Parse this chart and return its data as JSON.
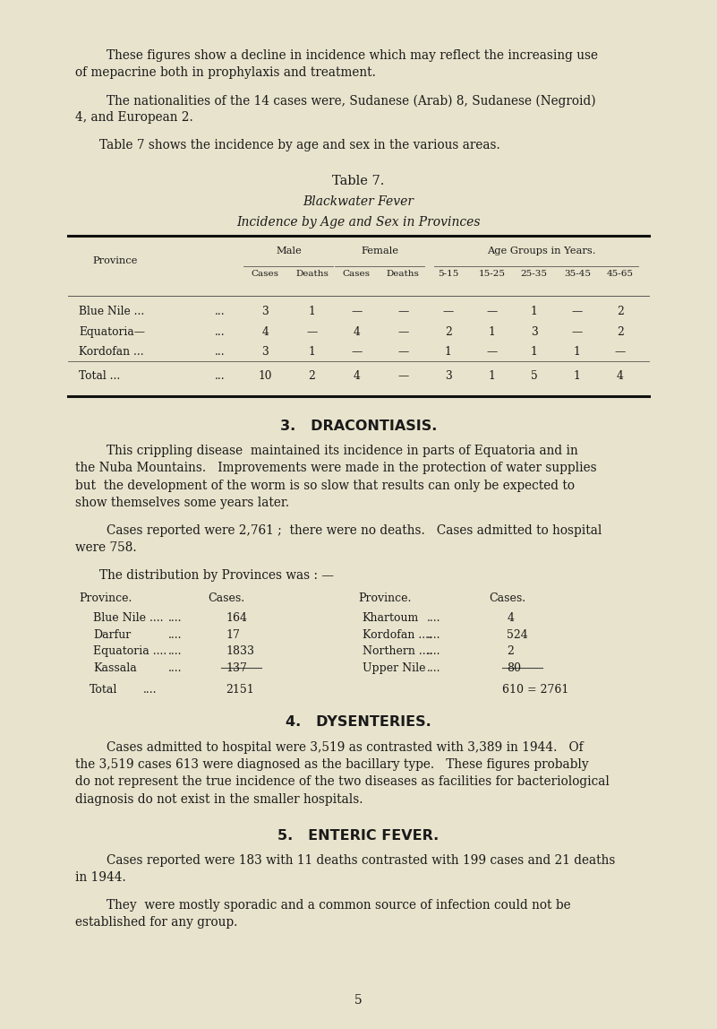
{
  "bg_color": "#e8e3cc",
  "text_color": "#1a1a1a",
  "page_width": 8.01,
  "page_height": 11.48,
  "dpi": 100,
  "para1": "These figures show a decline in incidence which may reflect the increasing use of mepacrine both in prophylaxis and treatment.",
  "para2": "The nationalities of the 14 cases were, Sudanese (Arab) 8, Sudanese (Negroid) 4, and European 2.",
  "para3": "Table 7 shows the incidence by age and sex in the various areas.",
  "table_title1": "Table 7.",
  "table_title2": "Blackwater Fever",
  "table_title3": "Incidence by Age and Sex in Provinces",
  "table_header1_col1": "Male",
  "table_header1_col2": "Female",
  "table_header1_col3": "Age Groups in Years.",
  "table_header2": [
    "Cases",
    "Deaths",
    "Cases",
    "Deaths",
    "5-15",
    "15-25",
    "25-35",
    "35-45",
    "45-65"
  ],
  "table_rows": [
    [
      "Blue Nile ...",
      "...",
      "3",
      "1",
      "—",
      "—",
      "—",
      "—",
      "1",
      "—",
      "2"
    ],
    [
      "Equatoria—",
      "...",
      "4",
      "—",
      "4",
      "—",
      "2",
      "1",
      "3",
      "—",
      "2"
    ],
    [
      "Kordofan ...",
      "...",
      "3",
      "1",
      "—",
      "—",
      "1",
      "—",
      "1",
      "1",
      "—"
    ]
  ],
  "table_total": [
    "Total ...",
    "...",
    "10",
    "2",
    "4",
    "—",
    "3",
    "1",
    "5",
    "1",
    "4"
  ],
  "section3_title": "3.   DRACONTIASIS.",
  "section3_p1": "This crippling disease  maintained its incidence in parts of Equatoria and in the Nuba Mountains.   Improvements were made in the protection of water supplies but  the development of the worm is so slow that results can only be expected to show themselves some years later.",
  "section3_p2": "Cases reported were 2,761 ;  there were no deaths.   Cases admitted to hospital were 758.",
  "section3_p3": "The distribution by Provinces was : —",
  "dist_left_header": [
    "Province.",
    "Cases."
  ],
  "dist_left": [
    [
      "Blue Nile ....",
      "....",
      "164"
    ],
    [
      "Darfur",
      "....",
      "17"
    ],
    [
      "Equatoria ....",
      "....",
      "1833"
    ],
    [
      "Kassala",
      "....",
      "137"
    ]
  ],
  "dist_left_total": [
    "Total",
    "....",
    "2151"
  ],
  "dist_right_header": [
    "Province.",
    "Cases."
  ],
  "dist_right": [
    [
      "Khartoum",
      "....",
      "4"
    ],
    [
      "Kordofan ....",
      "....",
      "524"
    ],
    [
      "Northern ....",
      "....",
      "2"
    ],
    [
      "Upper Nile",
      "....",
      "80"
    ]
  ],
  "dist_right_total": [
    "610 = 2761"
  ],
  "section4_title": "4.   DYSENTERIES.",
  "section4_p1": "Cases admitted to hospital were 3,519 as contrasted with 3,389 in 1944.   Of the 3,519 cases 613 were diagnosed as the bacillary type.   These figures probably do not represent the true incidence of the two diseases as facilities for bacteriological diagnosis do not exist in the smaller hospitals.",
  "section5_title": "5.   ENTERIC FEVER.",
  "section5_p1": "Cases reported were 183 with 11 deaths contrasted with 199 cases and 21 deaths in 1944.",
  "section5_p2": "They  were mostly sporadic and a common source of infection could not be established for any group.",
  "page_num": "5"
}
